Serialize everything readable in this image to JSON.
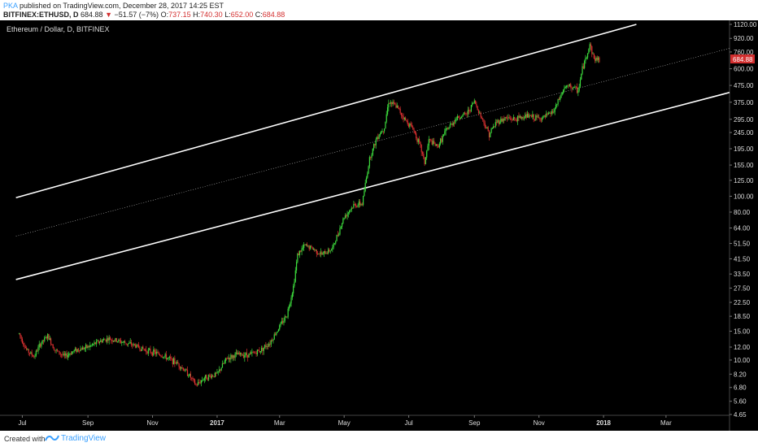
{
  "header": {
    "user": "PKA",
    "published": "published on TradingView.com, December 28, 2017 14:25 EST",
    "symbol": "BITFINEX:ETHUSD, D",
    "last": "684.88",
    "arrow": "▼",
    "change": "−51.57 (−7%)",
    "o_label": "O:",
    "o_val": "737.15",
    "h_label": "H:",
    "h_val": "740.30",
    "l_label": "L:",
    "l_val": "652.00",
    "c_label": "C:",
    "c_val": "684.88"
  },
  "chart": {
    "legend": "Ethereum / Dollar, D, BITFINEX",
    "price_tag": "684.88",
    "colors": {
      "up": "#3ddc3d",
      "down": "#d83030",
      "bg": "#000000",
      "channel": "#ffffff",
      "tag": "#d32f2f"
    }
  },
  "chart_data": {
    "type": "candlestick",
    "scale": "log",
    "ylim": [
      4.65,
      1120
    ],
    "y_ticks": [
      "1120.00",
      "920.00",
      "760.00",
      "600.00",
      "475.00",
      "375.00",
      "295.00",
      "245.00",
      "195.00",
      "155.00",
      "125.00",
      "100.00",
      "80.00",
      "64.00",
      "51.50",
      "41.50",
      "33.50",
      "27.50",
      "22.50",
      "18.50",
      "15.00",
      "12.00",
      "10.00",
      "8.20",
      "6.80",
      "5.60",
      "4.65"
    ],
    "x_ticks": [
      "Jul",
      "Sep",
      "Nov",
      "2017",
      "Mar",
      "May",
      "Jul",
      "Sep",
      "Nov",
      "2018",
      "Mar"
    ],
    "price_path": [
      [
        "2016-06-28",
        14.5
      ],
      [
        "2016-07-05",
        11.5
      ],
      [
        "2016-07-12",
        10.5
      ],
      [
        "2016-07-18",
        12.5
      ],
      [
        "2016-07-25",
        14.0
      ],
      [
        "2016-08-01",
        11.5
      ],
      [
        "2016-08-10",
        10.5
      ],
      [
        "2016-08-20",
        11.5
      ],
      [
        "2016-09-01",
        12.0
      ],
      [
        "2016-09-12",
        13.0
      ],
      [
        "2016-09-20",
        13.5
      ],
      [
        "2016-10-01",
        13.0
      ],
      [
        "2016-10-15",
        12.3
      ],
      [
        "2016-10-25",
        11.5
      ],
      [
        "2016-11-05",
        11.0
      ],
      [
        "2016-11-15",
        10.3
      ],
      [
        "2016-11-25",
        9.5
      ],
      [
        "2016-12-05",
        8.2
      ],
      [
        "2016-12-12",
        7.0
      ],
      [
        "2016-12-20",
        7.8
      ],
      [
        "2017-01-01",
        8.2
      ],
      [
        "2017-01-10",
        10.2
      ],
      [
        "2017-01-20",
        10.8
      ],
      [
        "2017-02-01",
        10.8
      ],
      [
        "2017-02-10",
        11.4
      ],
      [
        "2017-02-20",
        12.8
      ],
      [
        "2017-03-01",
        16.0
      ],
      [
        "2017-03-08",
        19.0
      ],
      [
        "2017-03-14",
        28.0
      ],
      [
        "2017-03-18",
        44.0
      ],
      [
        "2017-03-25",
        50.0
      ],
      [
        "2017-04-01",
        48.0
      ],
      [
        "2017-04-10",
        44.0
      ],
      [
        "2017-04-20",
        48.0
      ],
      [
        "2017-05-01",
        75.0
      ],
      [
        "2017-05-10",
        88.0
      ],
      [
        "2017-05-18",
        90.0
      ],
      [
        "2017-05-25",
        170.0
      ],
      [
        "2017-06-01",
        230.0
      ],
      [
        "2017-06-08",
        265.0
      ],
      [
        "2017-06-12",
        380.0
      ],
      [
        "2017-06-20",
        350.0
      ],
      [
        "2017-06-28",
        290.0
      ],
      [
        "2017-07-05",
        260.0
      ],
      [
        "2017-07-12",
        200.0
      ],
      [
        "2017-07-16",
        160.0
      ],
      [
        "2017-07-20",
        220.0
      ],
      [
        "2017-07-28",
        200.0
      ],
      [
        "2017-08-05",
        250.0
      ],
      [
        "2017-08-15",
        300.0
      ],
      [
        "2017-08-25",
        320.0
      ],
      [
        "2017-09-01",
        380.0
      ],
      [
        "2017-09-08",
        300.0
      ],
      [
        "2017-09-15",
        240.0
      ],
      [
        "2017-09-22",
        285.0
      ],
      [
        "2017-10-01",
        300.0
      ],
      [
        "2017-10-10",
        295.0
      ],
      [
        "2017-10-20",
        310.0
      ],
      [
        "2017-10-30",
        300.0
      ],
      [
        "2017-11-05",
        300.0
      ],
      [
        "2017-11-15",
        330.0
      ],
      [
        "2017-11-25",
        460.0
      ],
      [
        "2017-12-01",
        470.0
      ],
      [
        "2017-12-08",
        440.0
      ],
      [
        "2017-12-12",
        600.0
      ],
      [
        "2017-12-16",
        720.0
      ],
      [
        "2017-12-19",
        850.0
      ],
      [
        "2017-12-23",
        690.0
      ],
      [
        "2017-12-28",
        684.88
      ]
    ],
    "channel_lines": [
      {
        "name": "upper",
        "points": [
          [
            "2016-06-25",
            98
          ],
          [
            "2018-02-01",
            1120
          ]
        ]
      },
      {
        "name": "mid",
        "points": [
          [
            "2016-06-25",
            57
          ],
          [
            "2018-04-30",
            800
          ]
        ]
      },
      {
        "name": "lower",
        "points": [
          [
            "2016-06-25",
            31
          ],
          [
            "2018-04-30",
            430
          ]
        ]
      }
    ]
  },
  "footer": {
    "created": "Created with",
    "brand": "TradingView"
  }
}
